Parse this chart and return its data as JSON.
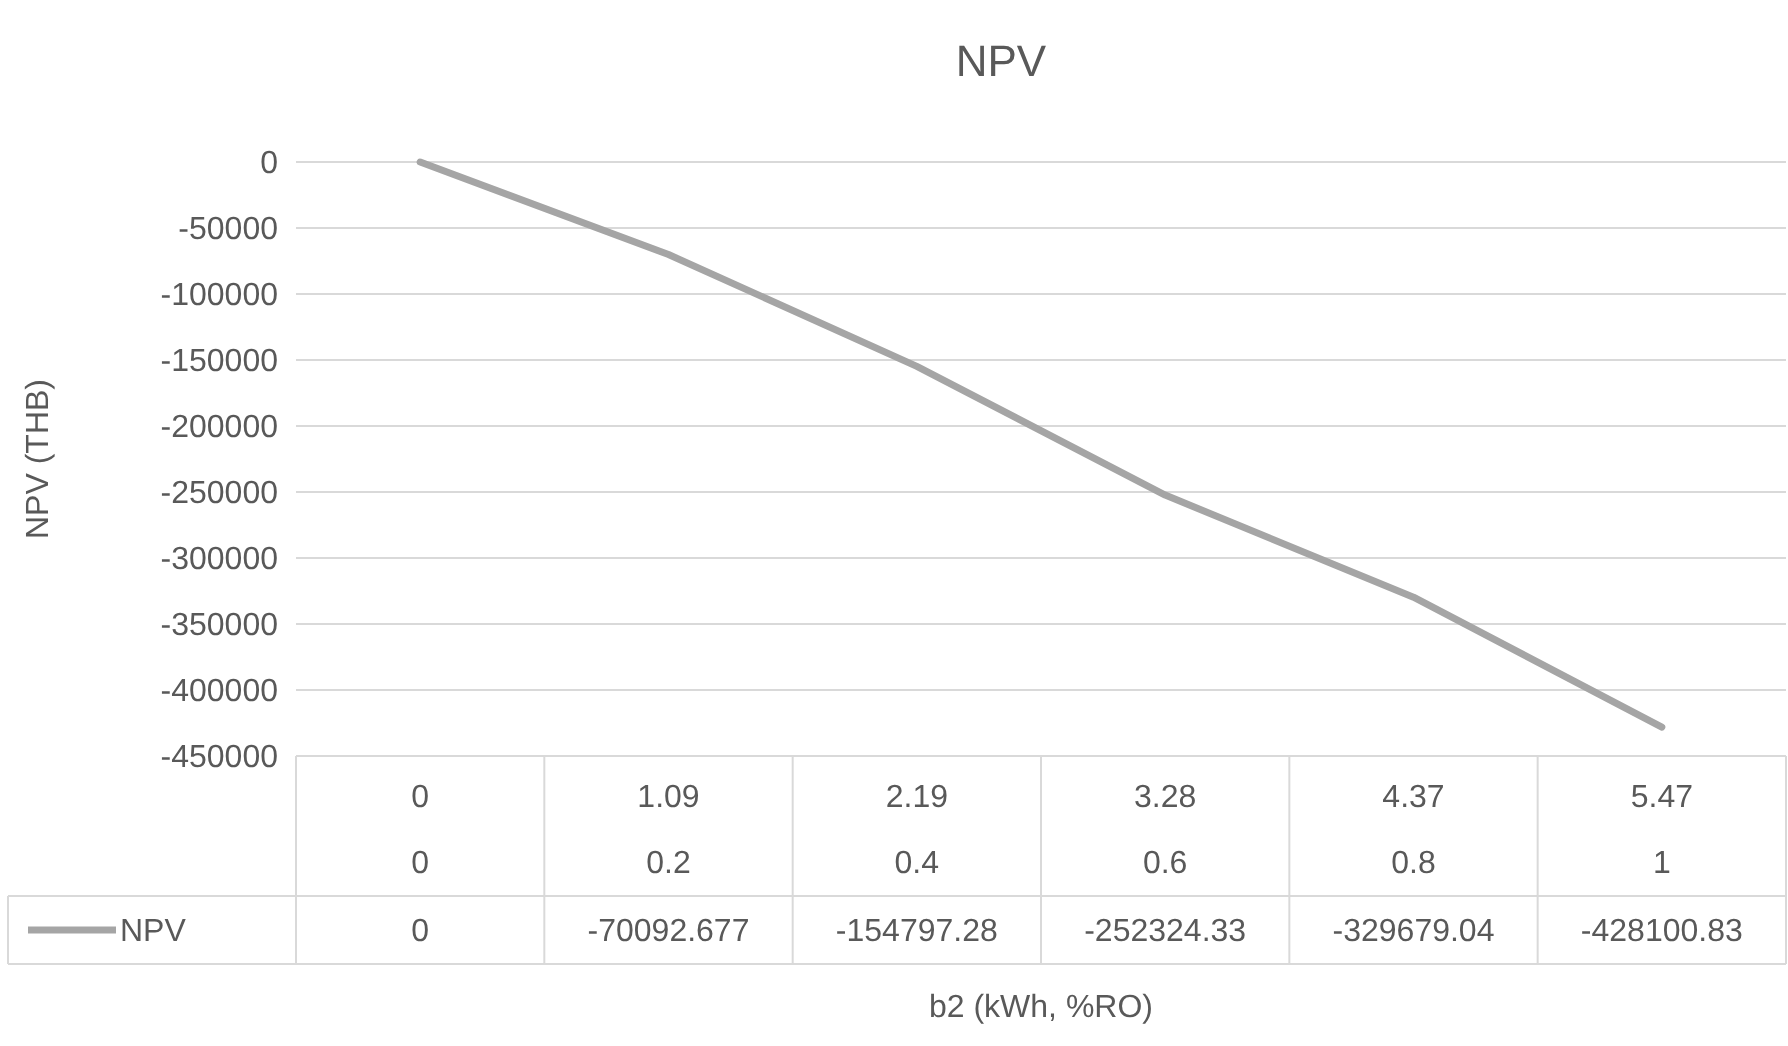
{
  "chart_data": {
    "type": "line",
    "title": "NPV",
    "xlabel": "b2 (kWh, %RO)",
    "ylabel": "NPV (THB)",
    "categories": [
      "0\n0",
      "1.09\n0.2",
      "2.19\n0.4",
      "3.28\n0.6",
      "4.37\n0.8",
      "5.47\n1"
    ],
    "series": [
      {
        "name": "NPV",
        "color": "#a5a5a5",
        "values": [
          0,
          -70092.677,
          -154797.28,
          -252324.33,
          -329679.04,
          -428100.83
        ]
      }
    ],
    "ylim": [
      -450000,
      0
    ],
    "yticks": [
      0,
      -50000,
      -100000,
      -150000,
      -200000,
      -250000,
      -300000,
      -350000,
      -400000,
      -450000
    ],
    "grid": "y",
    "legend": "bottom",
    "data_labels": true,
    "line_style": "solid"
  }
}
